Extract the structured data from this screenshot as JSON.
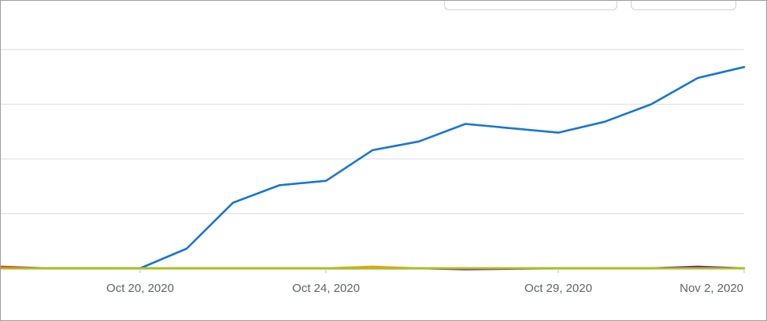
{
  "controls": {
    "selector_a": "",
    "selector_b": ""
  },
  "chart_data": {
    "type": "line",
    "title": "",
    "xlabel": "",
    "ylabel": "",
    "x": [
      "2020-10-17",
      "2020-10-18",
      "2020-10-19",
      "2020-10-20",
      "2020-10-21",
      "2020-10-22",
      "2020-10-23",
      "2020-10-24",
      "2020-10-25",
      "2020-10-26",
      "2020-10-27",
      "2020-10-29",
      "2020-10-30",
      "2020-10-31",
      "2020-11-01",
      "2020-11-02"
    ],
    "xticks": [
      "Oct 20, 2020",
      "Oct 24, 2020",
      "Oct 29, 2020",
      "Nov 2, 2020"
    ],
    "ylim": [
      0,
      100
    ],
    "grid": true,
    "legend": "none",
    "series": [
      {
        "color": "#1976d2",
        "values": [
          0,
          0,
          0,
          0,
          9,
          30,
          38,
          40,
          54,
          58,
          66,
          62,
          67,
          75,
          87,
          92
        ]
      },
      {
        "color": "#a0c61a",
        "values": [
          0,
          0,
          0,
          0,
          0,
          0,
          0,
          0,
          0,
          0,
          0,
          0,
          0,
          0,
          0,
          0
        ]
      },
      {
        "color": "#ff9800",
        "values": [
          0,
          0,
          0,
          0,
          0,
          0,
          0,
          0,
          0.8,
          0,
          0,
          0,
          0,
          0,
          0,
          0
        ]
      },
      {
        "color": "#7b1fa2",
        "values": [
          0,
          0,
          0,
          0,
          0,
          0,
          0,
          0,
          0,
          0,
          -0.5,
          0,
          0,
          0,
          0.8,
          0
        ]
      },
      {
        "color": "#e53935",
        "values": [
          0.8,
          0,
          0,
          0,
          0,
          0,
          0,
          0,
          0,
          0,
          0,
          0,
          0,
          0,
          0,
          0
        ]
      }
    ]
  }
}
